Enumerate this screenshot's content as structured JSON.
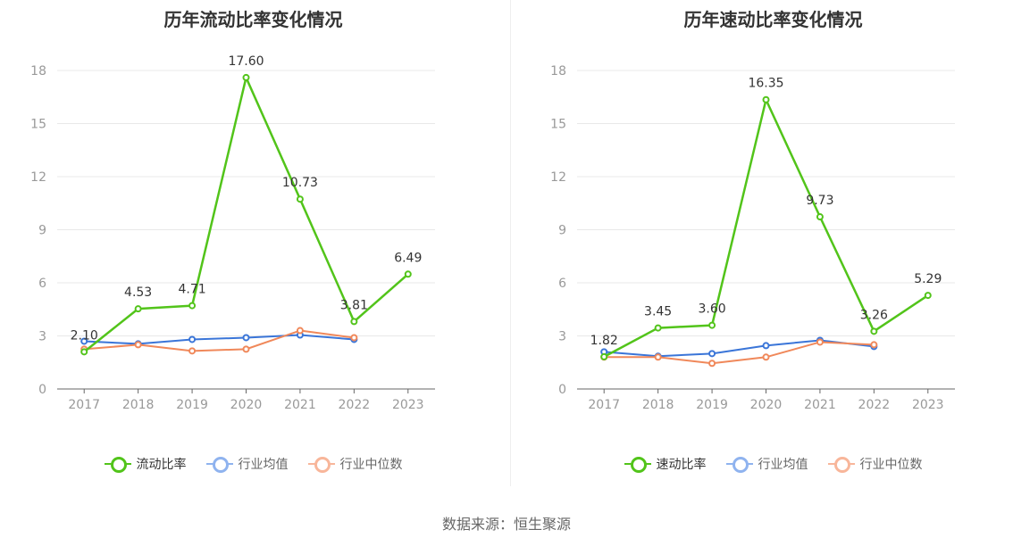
{
  "chart_data": [
    {
      "type": "line",
      "title": "历年流动比率变化情况",
      "categories": [
        "2017",
        "2018",
        "2019",
        "2020",
        "2021",
        "2022",
        "2023"
      ],
      "ylim": [
        0,
        18
      ],
      "yticks": [
        "0",
        "3",
        "6",
        "9",
        "12",
        "15",
        "18"
      ],
      "grid": true,
      "legend_position": "bottom",
      "series": [
        {
          "name": "流动比率",
          "values": [
            2.1,
            4.53,
            4.71,
            17.6,
            10.73,
            3.81,
            6.49
          ],
          "labels": [
            "2.10",
            "4.53",
            "4.71",
            "17.60",
            "10.73",
            "3.81",
            "6.49"
          ],
          "color": "#52c41a",
          "legend_color": "#52c41a"
        },
        {
          "name": "行业均值",
          "values": [
            2.7,
            2.55,
            2.8,
            2.9,
            3.05,
            2.8,
            null
          ],
          "color": "#3a75d8",
          "legend_color": "#8fb3ef"
        },
        {
          "name": "行业中位数",
          "values": [
            2.25,
            2.5,
            2.15,
            2.25,
            3.3,
            2.9,
            null
          ],
          "color": "#f0885a",
          "legend_color": "#f8b69a"
        }
      ]
    },
    {
      "type": "line",
      "title": "历年速动比率变化情况",
      "categories": [
        "2017",
        "2018",
        "2019",
        "2020",
        "2021",
        "2022",
        "2023"
      ],
      "ylim": [
        0,
        18
      ],
      "yticks": [
        "0",
        "3",
        "6",
        "9",
        "12",
        "15",
        "18"
      ],
      "grid": true,
      "legend_position": "bottom",
      "series": [
        {
          "name": "速动比率",
          "values": [
            1.82,
            3.45,
            3.6,
            16.35,
            9.73,
            3.26,
            5.29
          ],
          "labels": [
            "1.82",
            "3.45",
            "3.60",
            "16.35",
            "9.73",
            "3.26",
            "5.29"
          ],
          "color": "#52c41a",
          "legend_color": "#52c41a"
        },
        {
          "name": "行业均值",
          "values": [
            2.1,
            1.85,
            2.0,
            2.45,
            2.75,
            2.4,
            null
          ],
          "color": "#3a75d8",
          "legend_color": "#8fb3ef"
        },
        {
          "name": "行业中位数",
          "values": [
            1.8,
            1.8,
            1.45,
            1.8,
            2.65,
            2.5,
            null
          ],
          "color": "#f0885a",
          "legend_color": "#f8b69a"
        }
      ]
    }
  ],
  "footer": {
    "source_text": "数据来源：恒生聚源"
  }
}
